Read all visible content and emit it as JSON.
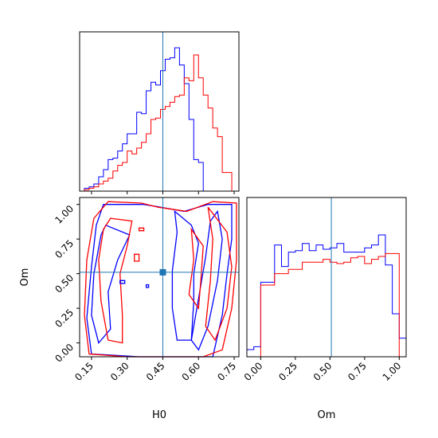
{
  "chart_data": {
    "type": "corner",
    "parameters": [
      "H0",
      "Om"
    ],
    "truth": {
      "H0": 0.45,
      "Om": 0.51
    },
    "colors": {
      "blue": "#0000ff",
      "red": "#ff0000",
      "truth": "#1f77b4"
    },
    "axes": {
      "H0": {
        "label": "H0",
        "lim": [
          0.1,
          0.77
        ],
        "ticks": [
          0.15,
          0.3,
          0.45,
          0.6,
          0.75
        ],
        "tick_labels": [
          "0.15",
          "0.30",
          "0.45",
          "0.60",
          "0.75"
        ]
      },
      "Om": {
        "label": "Om",
        "lim": [
          -0.1,
          1.05
        ],
        "ticks": [
          0.0,
          0.25,
          0.5,
          0.75,
          1.0
        ],
        "tick_labels": [
          "0.00",
          "0.25",
          "0.50",
          "0.75",
          "1.00"
        ]
      }
    },
    "hist_H0": {
      "edges": [
        0.1,
        0.12,
        0.14,
        0.16,
        0.18,
        0.2,
        0.22,
        0.24,
        0.26,
        0.28,
        0.3,
        0.32,
        0.34,
        0.36,
        0.38,
        0.4,
        0.42,
        0.44,
        0.46,
        0.48,
        0.5,
        0.52,
        0.54,
        0.56,
        0.58,
        0.6,
        0.62,
        0.64,
        0.66,
        0.68,
        0.7,
        0.72,
        0.74
      ],
      "series": [
        {
          "color": "blue",
          "counts": [
            0.0,
            0.02,
            0.03,
            0.05,
            0.1,
            0.15,
            0.22,
            0.23,
            0.28,
            0.33,
            0.4,
            0.4,
            0.55,
            0.54,
            0.7,
            0.76,
            0.74,
            0.84,
            0.92,
            0.93,
            1.0,
            0.88,
            0.75,
            0.5,
            0.22,
            0.2,
            0.0,
            0.0,
            0.0,
            0.0,
            0.0,
            0.0
          ]
        },
        {
          "color": "red",
          "counts": [
            0.0,
            0.01,
            0.02,
            0.03,
            0.05,
            0.07,
            0.09,
            0.14,
            0.18,
            0.2,
            0.28,
            0.26,
            0.3,
            0.34,
            0.4,
            0.5,
            0.51,
            0.57,
            0.59,
            0.62,
            0.66,
            0.67,
            0.79,
            0.77,
            0.95,
            0.79,
            0.67,
            0.58,
            0.44,
            0.38,
            0.13,
            0.13
          ]
        }
      ]
    },
    "hist_Om": {
      "edges": [
        -0.1,
        -0.05,
        0.0,
        0.05,
        0.1,
        0.15,
        0.2,
        0.25,
        0.3,
        0.35,
        0.4,
        0.45,
        0.5,
        0.55,
        0.6,
        0.65,
        0.7,
        0.75,
        0.8,
        0.85,
        0.9,
        0.95,
        1.0,
        1.05
      ],
      "series": [
        {
          "color": "blue",
          "counts": [
            0.05,
            0.07,
            0.52,
            0.52,
            0.78,
            0.63,
            0.73,
            0.74,
            0.79,
            0.74,
            0.78,
            0.75,
            0.76,
            0.79,
            0.73,
            0.73,
            0.73,
            0.76,
            0.78,
            0.85,
            0.64,
            0.3,
            0.13
          ]
        },
        {
          "color": "red",
          "counts": [
            0.0,
            0.0,
            0.5,
            0.5,
            0.58,
            0.58,
            0.61,
            0.61,
            0.66,
            0.66,
            0.66,
            0.68,
            0.66,
            0.65,
            0.66,
            0.69,
            0.7,
            0.65,
            0.68,
            0.7,
            0.72,
            0.72,
            0.0
          ]
        }
      ]
    },
    "contours": [
      {
        "color": "blue",
        "points": [
          [
            0.27,
            1.0
          ],
          [
            0.37,
            1.0
          ],
          [
            0.44,
            0.98
          ],
          [
            0.54,
            0.95
          ],
          [
            0.64,
            1.0
          ],
          [
            0.74,
            1.0
          ],
          [
            0.74,
            0.75
          ],
          [
            0.72,
            0.5
          ],
          [
            0.7,
            0.2
          ],
          [
            0.66,
            -0.1
          ],
          [
            0.48,
            -0.12
          ],
          [
            0.35,
            -0.1
          ],
          [
            0.15,
            -0.08
          ],
          [
            0.13,
            0.18
          ],
          [
            0.15,
            0.55
          ],
          [
            0.17,
            0.85
          ],
          [
            0.2,
            1.0
          ]
        ]
      },
      {
        "color": "blue",
        "points": [
          [
            0.21,
            0.85
          ],
          [
            0.31,
            0.78
          ],
          [
            0.26,
            0.6
          ],
          [
            0.22,
            0.37
          ],
          [
            0.23,
            0.1
          ],
          [
            0.18,
            0.0
          ],
          [
            0.15,
            0.2
          ],
          [
            0.16,
            0.5
          ],
          [
            0.19,
            0.78
          ]
        ]
      },
      {
        "color": "blue",
        "points": [
          [
            0.5,
            0.95
          ],
          [
            0.57,
            0.85
          ],
          [
            0.6,
            0.72
          ],
          [
            0.58,
            0.5
          ],
          [
            0.58,
            0.3
          ],
          [
            0.57,
            0.02
          ],
          [
            0.51,
            0.02
          ],
          [
            0.49,
            0.25
          ],
          [
            0.49,
            0.52
          ],
          [
            0.51,
            0.8
          ]
        ]
      },
      {
        "color": "blue",
        "points": [
          [
            0.68,
            0.95
          ],
          [
            0.7,
            0.75
          ],
          [
            0.68,
            0.45
          ],
          [
            0.64,
            0.12
          ],
          [
            0.6,
            -0.05
          ],
          [
            0.57,
            0.02
          ],
          [
            0.6,
            0.32
          ],
          [
            0.63,
            0.62
          ],
          [
            0.65,
            0.88
          ]
        ]
      },
      {
        "color": "red",
        "points": [
          [
            0.22,
            1.02
          ],
          [
            0.36,
            1.01
          ],
          [
            0.43,
            0.98
          ],
          [
            0.55,
            0.95
          ],
          [
            0.66,
            1.02
          ],
          [
            0.76,
            1.01
          ],
          [
            0.76,
            0.6
          ],
          [
            0.74,
            0.25
          ],
          [
            0.7,
            -0.05
          ],
          [
            0.62,
            -0.12
          ],
          [
            0.45,
            -0.12
          ],
          [
            0.3,
            -0.1
          ],
          [
            0.14,
            -0.08
          ],
          [
            0.12,
            0.2
          ],
          [
            0.13,
            0.6
          ],
          [
            0.16,
            0.9
          ]
        ]
      },
      {
        "color": "red",
        "points": [
          [
            0.23,
            0.9
          ],
          [
            0.32,
            0.88
          ],
          [
            0.3,
            0.7
          ],
          [
            0.27,
            0.5
          ],
          [
            0.28,
            0.2
          ],
          [
            0.28,
            0.0
          ],
          [
            0.22,
            0.02
          ],
          [
            0.19,
            0.3
          ],
          [
            0.18,
            0.6
          ],
          [
            0.2,
            0.82
          ]
        ]
      },
      {
        "color": "red",
        "points": [
          [
            0.64,
            0.98
          ],
          [
            0.72,
            0.8
          ],
          [
            0.74,
            0.55
          ],
          [
            0.72,
            0.25
          ],
          [
            0.67,
            0.02
          ],
          [
            0.63,
            0.12
          ],
          [
            0.65,
            0.45
          ],
          [
            0.66,
            0.75
          ]
        ]
      },
      {
        "color": "red",
        "points": [
          [
            0.57,
            0.82
          ],
          [
            0.62,
            0.7
          ],
          [
            0.61,
            0.45
          ],
          [
            0.6,
            0.25
          ],
          [
            0.56,
            0.35
          ],
          [
            0.58,
            0.6
          ]
        ]
      },
      {
        "color": "red",
        "points": [
          [
            0.35,
            0.83
          ],
          [
            0.37,
            0.83
          ],
          [
            0.37,
            0.81
          ],
          [
            0.35,
            0.81
          ]
        ]
      },
      {
        "color": "red",
        "points": [
          [
            0.33,
            0.64
          ],
          [
            0.35,
            0.64
          ],
          [
            0.35,
            0.59
          ],
          [
            0.33,
            0.59
          ]
        ]
      },
      {
        "color": "blue",
        "points": [
          [
            0.27,
            0.45
          ],
          [
            0.29,
            0.45
          ],
          [
            0.29,
            0.43
          ],
          [
            0.27,
            0.43
          ]
        ]
      },
      {
        "color": "blue",
        "points": [
          [
            0.38,
            0.42
          ],
          [
            0.39,
            0.42
          ],
          [
            0.39,
            0.4
          ],
          [
            0.38,
            0.4
          ]
        ]
      }
    ]
  }
}
